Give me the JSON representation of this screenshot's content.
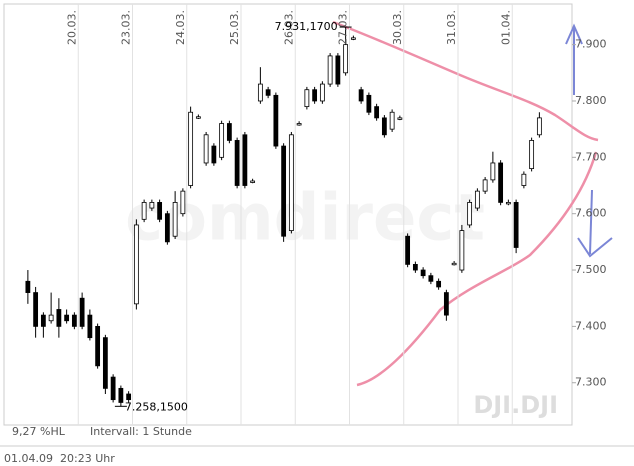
{
  "chart_data": {
    "type": "candlestick",
    "categories": [
      null,
      null,
      null,
      null,
      null,
      null,
      null,
      "20.03.",
      null,
      null,
      null,
      null,
      null,
      null,
      "23.03.",
      null,
      null,
      null,
      null,
      null,
      null,
      "24.03.",
      null,
      null,
      null,
      null,
      null,
      null,
      "25.03.",
      null,
      null,
      null,
      null,
      null,
      null,
      "26.03.",
      null,
      null,
      null,
      null,
      null,
      null,
      "27.03.",
      null,
      null,
      null,
      null,
      null,
      null,
      "30.03.",
      null,
      null,
      null,
      null,
      null,
      null,
      "31.03.",
      null,
      null,
      null,
      null,
      null,
      null,
      "01.04.",
      null,
      null,
      null
    ],
    "open": [
      7480,
      7460,
      7420,
      7410,
      7430,
      7420,
      7420,
      7450,
      7420,
      7400,
      7380,
      7310,
      7290,
      7280,
      7440,
      7590,
      7610,
      7620,
      7600,
      7560,
      7600,
      7650,
      7772,
      7690,
      7720,
      7700,
      7760,
      7730,
      7740,
      7658,
      7800,
      7820,
      7810,
      7720,
      7570,
      7760,
      7790,
      7820,
      7800,
      7830,
      7880,
      7850,
      7912,
      7820,
      7810,
      7790,
      7770,
      7750,
      7770,
      7560,
      7510,
      7500,
      7490,
      7480,
      7460,
      7512,
      7500,
      7580,
      7610,
      7640,
      7660,
      7690,
      7620,
      7620,
      7650,
      7680,
      7740
    ],
    "high": [
      7500,
      7470,
      7425,
      7460,
      7450,
      7430,
      7425,
      7460,
      7430,
      7405,
      7385,
      7315,
      7295,
      7285,
      7590,
      7625,
      7625,
      7625,
      7605,
      7640,
      7645,
      7790,
      7776,
      7745,
      7725,
      7765,
      7765,
      7735,
      7745,
      7662,
      7860,
      7825,
      7815,
      7725,
      7745,
      7764,
      7825,
      7825,
      7835,
      7885,
      7885,
      7931.17,
      7916,
      7825,
      7815,
      7795,
      7775,
      7785,
      7774,
      7565,
      7515,
      7505,
      7495,
      7485,
      7465,
      7516,
      7580,
      7625,
      7645,
      7665,
      7710,
      7695,
      7625,
      7625,
      7675,
      7735,
      7780
    ],
    "low": [
      7440,
      7380,
      7380,
      7405,
      7380,
      7405,
      7395,
      7395,
      7375,
      7325,
      7280,
      7265,
      7258.15,
      7265,
      7430,
      7585,
      7605,
      7585,
      7545,
      7555,
      7595,
      7645,
      7768,
      7685,
      7685,
      7695,
      7725,
      7645,
      7645,
      7654,
      7795,
      7805,
      7715,
      7550,
      7565,
      7756,
      7785,
      7795,
      7795,
      7825,
      7825,
      7845,
      7908,
      7795,
      7775,
      7765,
      7735,
      7745,
      7766,
      7505,
      7495,
      7485,
      7475,
      7465,
      7410,
      7508,
      7495,
      7575,
      7605,
      7635,
      7655,
      7615,
      7615,
      7530,
      7645,
      7675,
      7735
    ],
    "close": [
      7460,
      7400,
      7400,
      7420,
      7400,
      7410,
      7400,
      7400,
      7380,
      7330,
      7290,
      7270,
      7265,
      7270,
      7580,
      7620,
      7620,
      7590,
      7550,
      7620,
      7640,
      7780,
      7772,
      7740,
      7690,
      7760,
      7730,
      7650,
      7650,
      7658,
      7830,
      7810,
      7720,
      7560,
      7740,
      7760,
      7820,
      7800,
      7830,
      7880,
      7830,
      7900,
      7912,
      7800,
      7780,
      7770,
      7740,
      7780,
      7770,
      7510,
      7500,
      7490,
      7480,
      7470,
      7420,
      7512,
      7570,
      7620,
      7640,
      7660,
      7690,
      7620,
      7620,
      7540,
      7670,
      7730,
      7770
    ],
    "ylim": [
      7225,
      7965
    ],
    "yticks": [
      {
        "value": 7300,
        "label": "7.300"
      },
      {
        "value": 7400,
        "label": "7.400"
      },
      {
        "value": 7500,
        "label": "7.500"
      },
      {
        "value": 7600,
        "label": "7.600"
      },
      {
        "value": 7700,
        "label": "7.700"
      },
      {
        "value": 7800,
        "label": "7.800"
      },
      {
        "value": 7900,
        "label": "7.900"
      }
    ],
    "annotations": [
      {
        "label": "7.931,1700",
        "value": 7931.17
      },
      {
        "label": "7.258,1500",
        "value": 7258.15
      }
    ],
    "range_note": "9,27 %HL",
    "interval": "Intervall: 1 Stunde",
    "symbol": "DJI.DJI",
    "watermark": "comdirect",
    "timestamp_date": "01.04.09",
    "timestamp_time": "20:23 Uhr"
  }
}
